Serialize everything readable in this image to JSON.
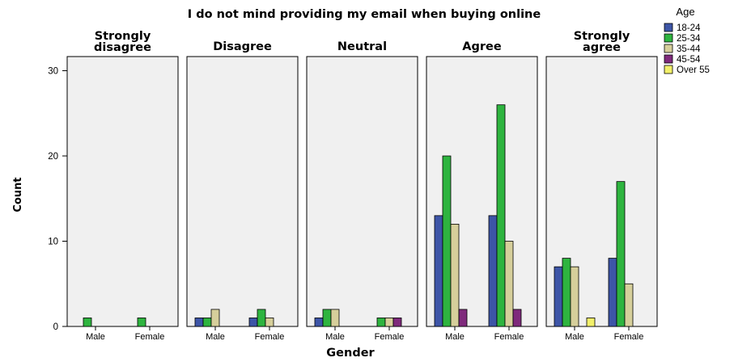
{
  "chart_data": {
    "type": "bar",
    "title": "I do not mind providing my email when buying online",
    "xlabel": "Gender",
    "ylabel": "Count",
    "ylim": [
      0,
      30
    ],
    "yticks": [
      0,
      10,
      20,
      30
    ],
    "grid": false,
    "legend_position": "top-right",
    "legend_title": "Age",
    "categories": [
      "Male",
      "Female"
    ],
    "series": [
      {
        "name": "18-24",
        "color": "#3d55a7"
      },
      {
        "name": "25-34",
        "color": "#2eb43f"
      },
      {
        "name": "35-44",
        "color": "#d6cf9b"
      },
      {
        "name": "45-54",
        "color": "#7f2a7c"
      },
      {
        "name": "Over 55",
        "color": "#f2f06a"
      }
    ],
    "panels": [
      {
        "title": [
          "Strongly",
          "disagree"
        ],
        "values": {
          "Male": [
            0,
            1,
            0,
            0,
            0
          ],
          "Female": [
            0,
            1,
            0,
            0,
            0
          ]
        }
      },
      {
        "title": [
          "Disagree"
        ],
        "values": {
          "Male": [
            1,
            1,
            2,
            0,
            0
          ],
          "Female": [
            1,
            2,
            1,
            0,
            0
          ]
        }
      },
      {
        "title": [
          "Neutral"
        ],
        "values": {
          "Male": [
            1,
            2,
            2,
            0,
            0
          ],
          "Female": [
            0,
            1,
            1,
            1,
            0
          ]
        }
      },
      {
        "title": [
          "Agree"
        ],
        "values": {
          "Male": [
            13,
            20,
            12,
            2,
            0
          ],
          "Female": [
            13,
            26,
            10,
            2,
            0
          ]
        }
      },
      {
        "title": [
          "Strongly",
          "agree"
        ],
        "values": {
          "Male": [
            7,
            8,
            7,
            0,
            1
          ],
          "Female": [
            8,
            17,
            5,
            0,
            0
          ]
        }
      }
    ]
  }
}
